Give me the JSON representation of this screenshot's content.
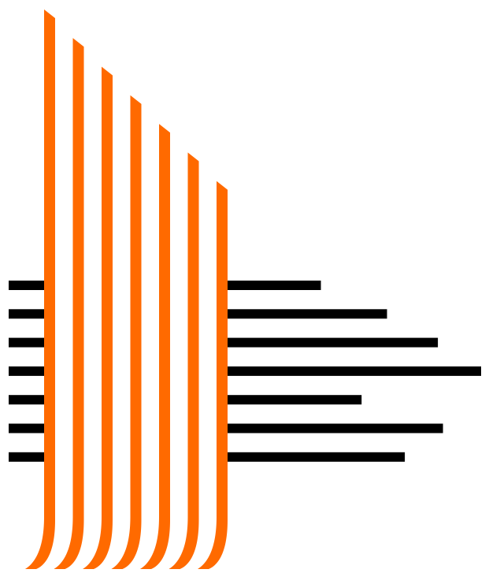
{
  "graphic": {
    "name": "striped-logo-mark",
    "colors": {
      "stripe": "#ff6a00",
      "bar": "#000000",
      "background": "#ffffff"
    },
    "stripe_count": 7,
    "bar_count": 7,
    "bar_relative_lengths": [
      0.37,
      0.63,
      0.83,
      1.0,
      0.53,
      0.85,
      0.7
    ]
  }
}
